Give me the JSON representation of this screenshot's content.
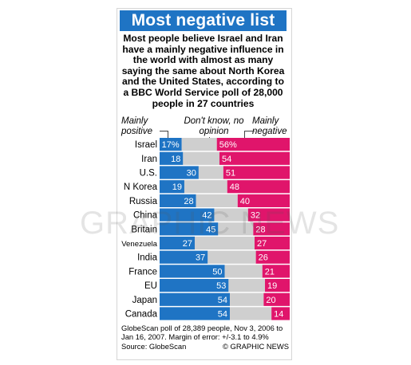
{
  "title": "Most negative list",
  "intro": "Most people believe Israel and Iran have a mainly negative influence in the world with almost as many saying the same about North Korea and the United States, according to a BBC World Service poll of 28,000 people in 27 countries",
  "column_headers": {
    "positive": "Mainly positive",
    "dont_know": "Don't know, no opinion",
    "negative": "Mainly negative"
  },
  "chart_data": {
    "type": "bar",
    "stacked": true,
    "orientation": "horizontal",
    "categories": [
      "Israel",
      "Iran",
      "U.S.",
      "N Korea",
      "Russia",
      "China",
      "Britain",
      "Venezuela",
      "India",
      "France",
      "EU",
      "Japan",
      "Canada"
    ],
    "series": [
      {
        "name": "Mainly positive",
        "color": "#1f74c4",
        "values": [
          17,
          18,
          30,
          19,
          28,
          42,
          45,
          27,
          37,
          50,
          53,
          54,
          54
        ]
      },
      {
        "name": "Don't know, no opinion",
        "color": "#cfcfcf",
        "values": [
          27,
          28,
          19,
          33,
          32,
          26,
          27,
          46,
          37,
          29,
          28,
          26,
          32
        ]
      },
      {
        "name": "Mainly negative",
        "color": "#e0156b",
        "values": [
          56,
          54,
          51,
          48,
          40,
          32,
          28,
          27,
          26,
          21,
          19,
          20,
          14
        ]
      }
    ],
    "value_labels": [
      "17%",
      "18",
      "30",
      "19",
      "28",
      "42",
      "45",
      "27",
      "37",
      "50",
      "53",
      "54",
      "54"
    ],
    "negative_labels": [
      "56%",
      "54",
      "51",
      "48",
      "40",
      "32",
      "28",
      "27",
      "26",
      "21",
      "19",
      "20",
      "14"
    ],
    "xlim": [
      0,
      100
    ]
  },
  "footer": {
    "note": "GlobeScan poll of 28,389 people, Nov 3, 2006 to Jan 16, 2007. Margin of error: +/-3.1 to 4.9%",
    "source": "Source: GlobeScan",
    "credit": "© GRAPHIC NEWS"
  },
  "watermark": "GRAPHIC NEWS"
}
